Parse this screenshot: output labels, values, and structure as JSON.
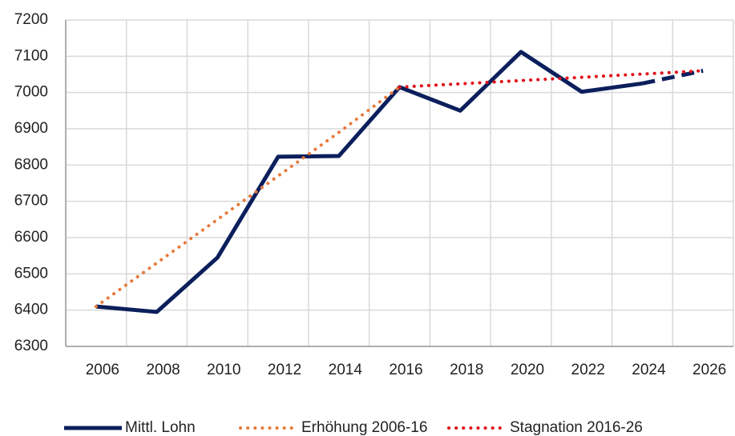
{
  "chart_data": {
    "type": "line",
    "categories": [
      "2006",
      "2008",
      "2010",
      "2012",
      "2014",
      "2016",
      "2018",
      "2020",
      "2022",
      "2024",
      "2026"
    ],
    "series": [
      {
        "name": "Mittl. Lohn",
        "color": "#0b1f5c",
        "style": "solid",
        "dashed_from": "2024",
        "values": [
          6410,
          6395,
          6545,
          6823,
          6825,
          7015,
          6950,
          7112,
          7002,
          7025,
          7060
        ]
      },
      {
        "name": "Erhöhung 2006-16",
        "color": "#e8793a",
        "style": "dotted",
        "values": [
          6410,
          6530,
          6650,
          6770,
          6890,
          7015,
          null,
          null,
          null,
          null,
          null
        ]
      },
      {
        "name": "Stagnation 2016-26",
        "color": "#e0101a",
        "style": "dotted",
        "values": [
          null,
          null,
          null,
          null,
          null,
          7015,
          7024,
          7033,
          7042,
          7051,
          7060
        ]
      }
    ],
    "ylim": [
      6300,
      7200
    ],
    "yticks": [
      6300,
      6400,
      6500,
      6600,
      6700,
      6800,
      6900,
      7000,
      7100,
      7200
    ],
    "grid": true,
    "legend": "bottom"
  }
}
